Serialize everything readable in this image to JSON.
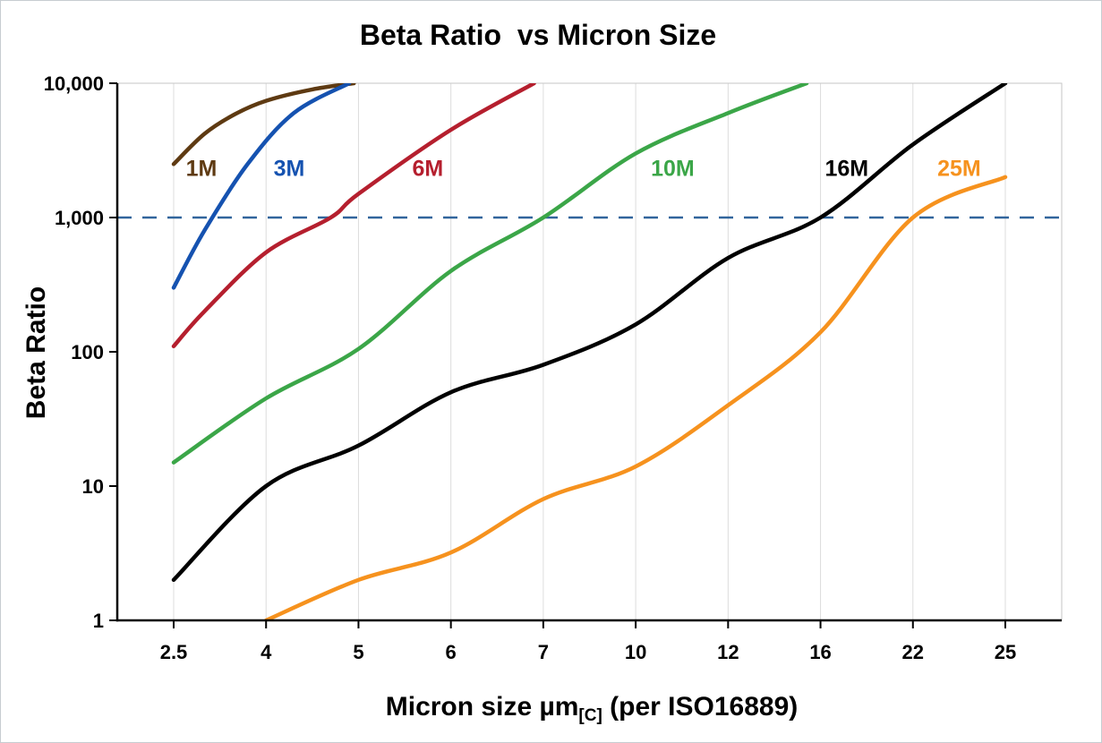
{
  "title": "Beta Ratio  vs Micron Size",
  "axes": {
    "y_label": "Beta Ratio",
    "x_label_prefix": "Micron size µm",
    "x_label_sub": "[C]",
    "x_label_suffix": " (per ISO16889)"
  },
  "chart_data": {
    "type": "line",
    "title": "Beta Ratio vs Micron Size",
    "xlabel": "Micron size µm[C] (per ISO16889)",
    "ylabel": "Beta Ratio",
    "x_scale": "categorical",
    "y_scale": "log",
    "ylim": [
      1,
      10000
    ],
    "grid": "vertical-only",
    "categories": [
      2.5,
      4,
      5,
      6,
      7,
      10,
      12,
      16,
      22,
      25
    ],
    "x_tick_labels": [
      "2.5",
      "4",
      "5",
      "6",
      "7",
      "10",
      "12",
      "16",
      "22",
      "25"
    ],
    "y_ticks": [
      {
        "label": "10,000",
        "value": 10000
      },
      {
        "label": "1,000",
        "value": 1000
      },
      {
        "label": "100",
        "value": 100
      },
      {
        "label": "10",
        "value": 10
      },
      {
        "label": "1",
        "value": 1
      }
    ],
    "reference_line": {
      "value": 1000,
      "style": "dashed",
      "color": "#31659c"
    },
    "series": [
      {
        "name": "1M",
        "color": "#5e3a12",
        "label_pos": [
          2.95,
          2300
        ],
        "points": [
          [
            2.5,
            2500
          ],
          [
            3,
            4200
          ],
          [
            3.5,
            5900
          ],
          [
            4,
            7400
          ],
          [
            4.5,
            9000
          ],
          [
            4.95,
            10000
          ]
        ]
      },
      {
        "name": "3M",
        "color": "#1552b0",
        "label_pos": [
          4.25,
          2300
        ],
        "points": [
          [
            2.5,
            300
          ],
          [
            3,
            800
          ],
          [
            3.7,
            2500
          ],
          [
            4.3,
            6000
          ],
          [
            4.9,
            10000
          ]
        ]
      },
      {
        "name": "6M",
        "color": "#b51f2e",
        "label_pos": [
          5.75,
          2300
        ],
        "points": [
          [
            2.5,
            110
          ],
          [
            3,
            200
          ],
          [
            4,
            550
          ],
          [
            4.7,
            1000
          ],
          [
            5,
            1500
          ],
          [
            6,
            4500
          ],
          [
            6.9,
            10000
          ]
        ]
      },
      {
        "name": "10M",
        "color": "#3ba648",
        "label_pos": [
          10.8,
          2300
        ],
        "points": [
          [
            2.5,
            15
          ],
          [
            4,
            45
          ],
          [
            5,
            105
          ],
          [
            6,
            400
          ],
          [
            7,
            1000
          ],
          [
            10,
            3000
          ],
          [
            12,
            6000
          ],
          [
            15.4,
            10000
          ]
        ]
      },
      {
        "name": "16M",
        "color": "#000000",
        "label_pos": [
          17.7,
          2300
        ],
        "points": [
          [
            2.5,
            2
          ],
          [
            4,
            10
          ],
          [
            5,
            20
          ],
          [
            6,
            50
          ],
          [
            7,
            80
          ],
          [
            10,
            160
          ],
          [
            12,
            500
          ],
          [
            16,
            1000
          ],
          [
            22,
            3500
          ],
          [
            25,
            10000
          ]
        ]
      },
      {
        "name": "25M",
        "color": "#f6921e",
        "label_pos": [
          23.5,
          2300
        ],
        "points": [
          [
            4,
            1
          ],
          [
            5,
            2
          ],
          [
            6,
            3.2
          ],
          [
            7,
            8
          ],
          [
            10,
            14
          ],
          [
            12,
            40
          ],
          [
            16,
            140
          ],
          [
            22,
            1000
          ],
          [
            25,
            2000
          ]
        ]
      }
    ]
  }
}
